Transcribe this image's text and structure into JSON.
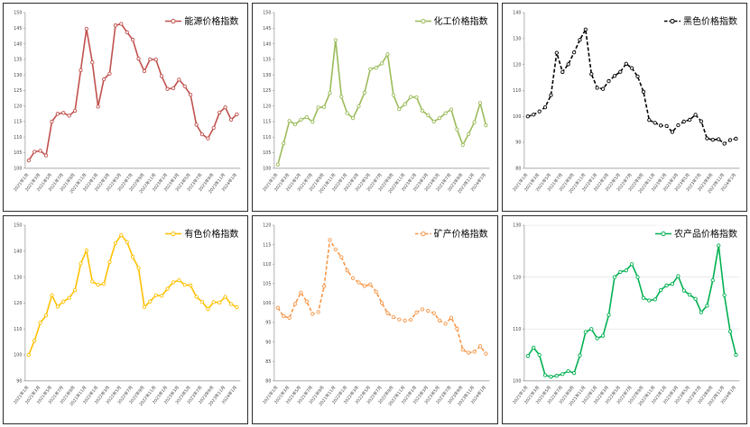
{
  "x_tick_labels": [
    "2021年1月",
    "2021年3月",
    "2021年5月",
    "2021年7月",
    "2021年9月",
    "2021年11月",
    "2022年1月",
    "2022年3月",
    "2022年5月",
    "2022年7月",
    "2022年9月",
    "2022年11月",
    "2023年1月",
    "2023年3月",
    "2023年5月",
    "2023年7月",
    "2023年9月",
    "2023年11月",
    "2024年1月"
  ],
  "chart_data": [
    {
      "type": "line",
      "legend": "能源价格指数",
      "color": "#C0504D",
      "line_style": "solid",
      "marker": "circle",
      "ylim": [
        100,
        150
      ],
      "y_step": 5,
      "grid": false,
      "legend_position": "top-right",
      "x_tick_labels_shared": true,
      "values": [
        102.5,
        105.3,
        105.6,
        104.1,
        115.0,
        117.5,
        117.8,
        116.9,
        118.5,
        131.5,
        144.8,
        134.0,
        119.8,
        128.6,
        130.4,
        145.9,
        146.4,
        143.7,
        141.3,
        135.2,
        131.2,
        135.0,
        134.9,
        129.6,
        125.5,
        125.7,
        128.5,
        126.3,
        123.6,
        114.0,
        110.9,
        109.6,
        113.0,
        117.9,
        119.6,
        115.6,
        117.3
      ]
    },
    {
      "type": "line",
      "legend": "化工价格指数",
      "color": "#9BBB59",
      "line_style": "solid",
      "marker": "circle",
      "ylim": [
        100,
        150
      ],
      "y_step": 5,
      "grid": false,
      "legend_position": "top-right",
      "x_tick_labels_shared": true,
      "values": [
        101.2,
        108.0,
        115.2,
        114.1,
        115.6,
        116.4,
        114.9,
        119.5,
        119.7,
        124.2,
        141.2,
        123.0,
        117.7,
        116.1,
        119.9,
        124.3,
        131.9,
        132.3,
        133.7,
        136.6,
        123.5,
        119.0,
        120.6,
        122.9,
        122.8,
        118.5,
        117.0,
        115.0,
        116.1,
        117.7,
        118.9,
        112.5,
        107.5,
        111.0,
        114.8,
        121.0,
        113.8
      ]
    },
    {
      "type": "line",
      "legend": "黑色价格指数",
      "color": "#000000",
      "line_style": "dashed",
      "marker": "circle",
      "ylim": [
        80,
        140
      ],
      "y_step": 10,
      "grid": false,
      "legend_position": "top-right",
      "x_tick_labels_shared": true,
      "values": [
        100.0,
        100.7,
        101.9,
        103.5,
        108.2,
        124.5,
        117.1,
        120.1,
        124.7,
        129.5,
        133.5,
        116.3,
        111.0,
        110.6,
        113.6,
        115.6,
        117.2,
        120.3,
        118.6,
        115.4,
        109.5,
        98.6,
        97.5,
        96.5,
        96.3,
        94.0,
        96.6,
        98.0,
        98.7,
        100.6,
        98.1,
        91.5,
        91.0,
        91.2,
        89.5,
        90.9,
        91.4
      ]
    },
    {
      "type": "line",
      "legend": "有色价格指数",
      "color": "#FFC000",
      "line_style": "solid",
      "marker": "circle",
      "ylim": [
        90,
        150
      ],
      "y_step": 10,
      "grid": false,
      "legend_position": "top-right",
      "x_tick_labels_shared": true,
      "values": [
        100.0,
        105.5,
        112.4,
        115.2,
        123.0,
        118.6,
        120.6,
        122.0,
        125.0,
        135.2,
        140.3,
        128.3,
        127.0,
        127.4,
        135.8,
        143.1,
        146.2,
        143.5,
        137.8,
        133.5,
        118.5,
        120.6,
        123.0,
        122.8,
        125.5,
        128.0,
        128.8,
        127.0,
        126.8,
        122.4,
        120.5,
        117.7,
        120.4,
        120.2,
        122.4,
        119.6,
        118.4
      ]
    },
    {
      "type": "line",
      "legend": "矿产价格指数",
      "color": "#F79646",
      "line_style": "dashed",
      "marker": "circle",
      "ylim": [
        80,
        120
      ],
      "y_step": 5,
      "grid": false,
      "legend_position": "top-right",
      "x_tick_labels_shared": true,
      "values": [
        98.8,
        96.6,
        96.2,
        99.8,
        102.7,
        100.4,
        97.2,
        97.7,
        104.3,
        116.2,
        113.8,
        111.8,
        108.4,
        106.4,
        105.3,
        104.4,
        104.8,
        102.9,
        100.0,
        97.4,
        96.4,
        95.8,
        95.5,
        95.7,
        97.6,
        98.4,
        98.0,
        97.4,
        95.5,
        94.7,
        96.2,
        93.4,
        88.0,
        87.2,
        87.5,
        88.9,
        87.0
      ]
    },
    {
      "type": "line",
      "legend": "农产品价格指数",
      "color": "#00B050",
      "line_style": "solid",
      "marker": "circle",
      "ylim": [
        100,
        130
      ],
      "y_step": 10,
      "grid": true,
      "legend_position": "top-right",
      "x_tick_labels_shared": true,
      "values": [
        104.8,
        106.4,
        105.0,
        101.1,
        100.8,
        101.0,
        101.3,
        101.9,
        101.5,
        104.9,
        109.4,
        110.0,
        108.2,
        108.7,
        112.7,
        120.0,
        121.0,
        121.3,
        122.5,
        120.0,
        116.0,
        115.5,
        115.7,
        117.5,
        118.4,
        118.7,
        120.2,
        117.4,
        116.6,
        115.8,
        113.2,
        114.5,
        119.4,
        126.1,
        116.5,
        109.5,
        105.0
      ]
    }
  ]
}
